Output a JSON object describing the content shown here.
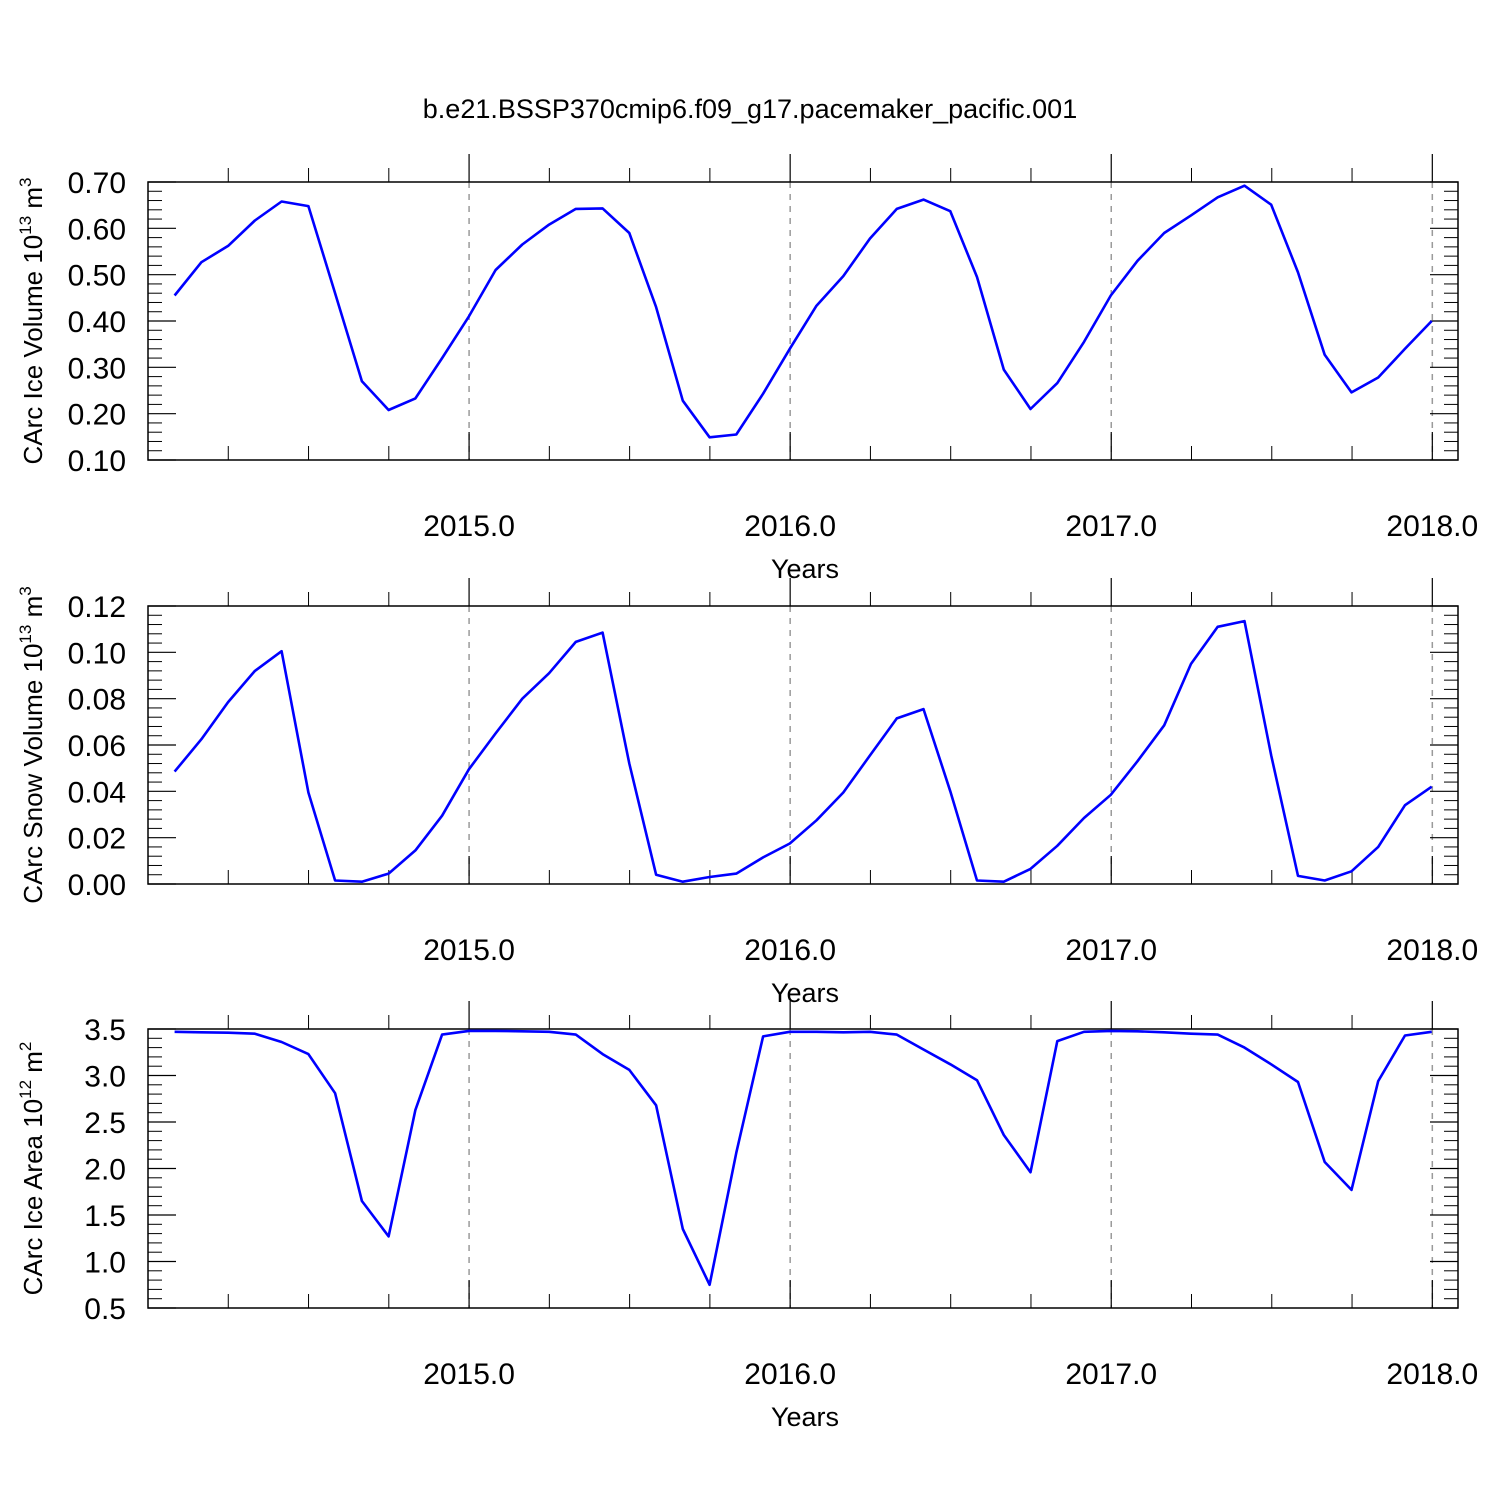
{
  "title": "b.e21.BSSP370cmip6.f09_g17.pacemaker_pacific.001",
  "colors": {
    "line": "#0000ff",
    "frame": "#000000",
    "grid": "#9a9a9a"
  },
  "chart_data": [
    {
      "type": "line",
      "ylabel": {
        "text": "CArc Ice Volume 10",
        "exp": "13",
        "unit": " m",
        "unit_exp": "3"
      },
      "xlabel": "Years",
      "ylim": [
        0.1,
        0.7
      ],
      "xlim": [
        2014.0,
        2018.08
      ],
      "yticks": [
        "0.10",
        "0.20",
        "0.30",
        "0.40",
        "0.50",
        "0.60",
        "0.70"
      ],
      "xticks": [
        "2015.0",
        "2016.0",
        "2017.0",
        "2018.0"
      ],
      "grid": "vertical dashed at major x ticks",
      "series": [
        {
          "x_start": 2014.083,
          "x_step": 0.0833,
          "values": [
            0.455,
            0.527,
            0.562,
            0.617,
            0.658,
            0.648,
            0.46,
            0.27,
            0.208,
            0.233,
            0.32,
            0.41,
            0.51,
            0.565,
            0.608,
            0.642,
            0.643,
            0.59,
            0.43,
            0.228,
            0.149,
            0.155,
            0.243,
            0.34,
            0.433,
            0.497,
            0.578,
            0.642,
            0.662,
            0.637,
            0.495,
            0.295,
            0.21,
            0.266,
            0.355,
            0.455,
            0.53,
            0.59,
            0.628,
            0.667,
            0.692,
            0.651,
            0.505,
            0.327,
            0.246,
            0.278,
            0.34,
            0.4
          ]
        }
      ]
    },
    {
      "type": "line",
      "ylabel": {
        "text": "CArc Snow Volume 10",
        "exp": "13",
        "unit": " m",
        "unit_exp": "3"
      },
      "xlabel": "Years",
      "ylim": [
        0.0,
        0.12
      ],
      "xlim": [
        2014.0,
        2018.08
      ],
      "yticks": [
        "0.00",
        "0.02",
        "0.04",
        "0.06",
        "0.08",
        "0.10",
        "0.12"
      ],
      "xticks": [
        "2015.0",
        "2016.0",
        "2017.0",
        "2018.0"
      ],
      "grid": "vertical dashed at major x ticks",
      "series": [
        {
          "x_start": 2014.083,
          "x_step": 0.0833,
          "values": [
            0.0485,
            0.0625,
            0.0785,
            0.092,
            0.1005,
            0.0395,
            0.0015,
            0.001,
            0.0045,
            0.0145,
            0.0295,
            0.0495,
            0.065,
            0.08,
            0.091,
            0.1045,
            0.1085,
            0.052,
            0.004,
            0.001,
            0.003,
            0.0045,
            0.0115,
            0.0175,
            0.0275,
            0.0395,
            0.0555,
            0.0715,
            0.0755,
            0.04,
            0.0015,
            0.001,
            0.0065,
            0.0165,
            0.0285,
            0.0385,
            0.053,
            0.0685,
            0.095,
            0.111,
            0.1135,
            0.0555,
            0.0035,
            0.0015,
            0.0055,
            0.016,
            0.034,
            0.042
          ]
        }
      ]
    },
    {
      "type": "line",
      "ylabel": {
        "text": "CArc Ice Area 10",
        "exp": "12",
        "unit": " m",
        "unit_exp": "2"
      },
      "xlabel": "Years",
      "ylim": [
        0.5,
        3.5
      ],
      "xlim": [
        2014.0,
        2018.08
      ],
      "yticks": [
        "0.5",
        "1.0",
        "1.5",
        "2.0",
        "2.5",
        "3.0",
        "3.5"
      ],
      "xticks": [
        "2015.0",
        "2016.0",
        "2017.0",
        "2018.0"
      ],
      "grid": "vertical dashed at major x ticks",
      "series": [
        {
          "x_start": 2014.083,
          "x_step": 0.0833,
          "values": [
            3.47,
            3.465,
            3.46,
            3.45,
            3.36,
            3.23,
            2.81,
            1.65,
            1.27,
            2.63,
            3.44,
            3.48,
            3.48,
            3.475,
            3.47,
            3.44,
            3.23,
            3.06,
            2.68,
            1.35,
            0.75,
            2.17,
            3.42,
            3.47,
            3.47,
            3.465,
            3.47,
            3.44,
            3.28,
            3.12,
            2.95,
            2.36,
            1.96,
            3.37,
            3.47,
            3.48,
            3.475,
            3.465,
            3.45,
            3.44,
            3.3,
            3.12,
            2.93,
            2.07,
            1.77,
            2.94,
            3.43,
            3.47
          ]
        }
      ]
    }
  ]
}
